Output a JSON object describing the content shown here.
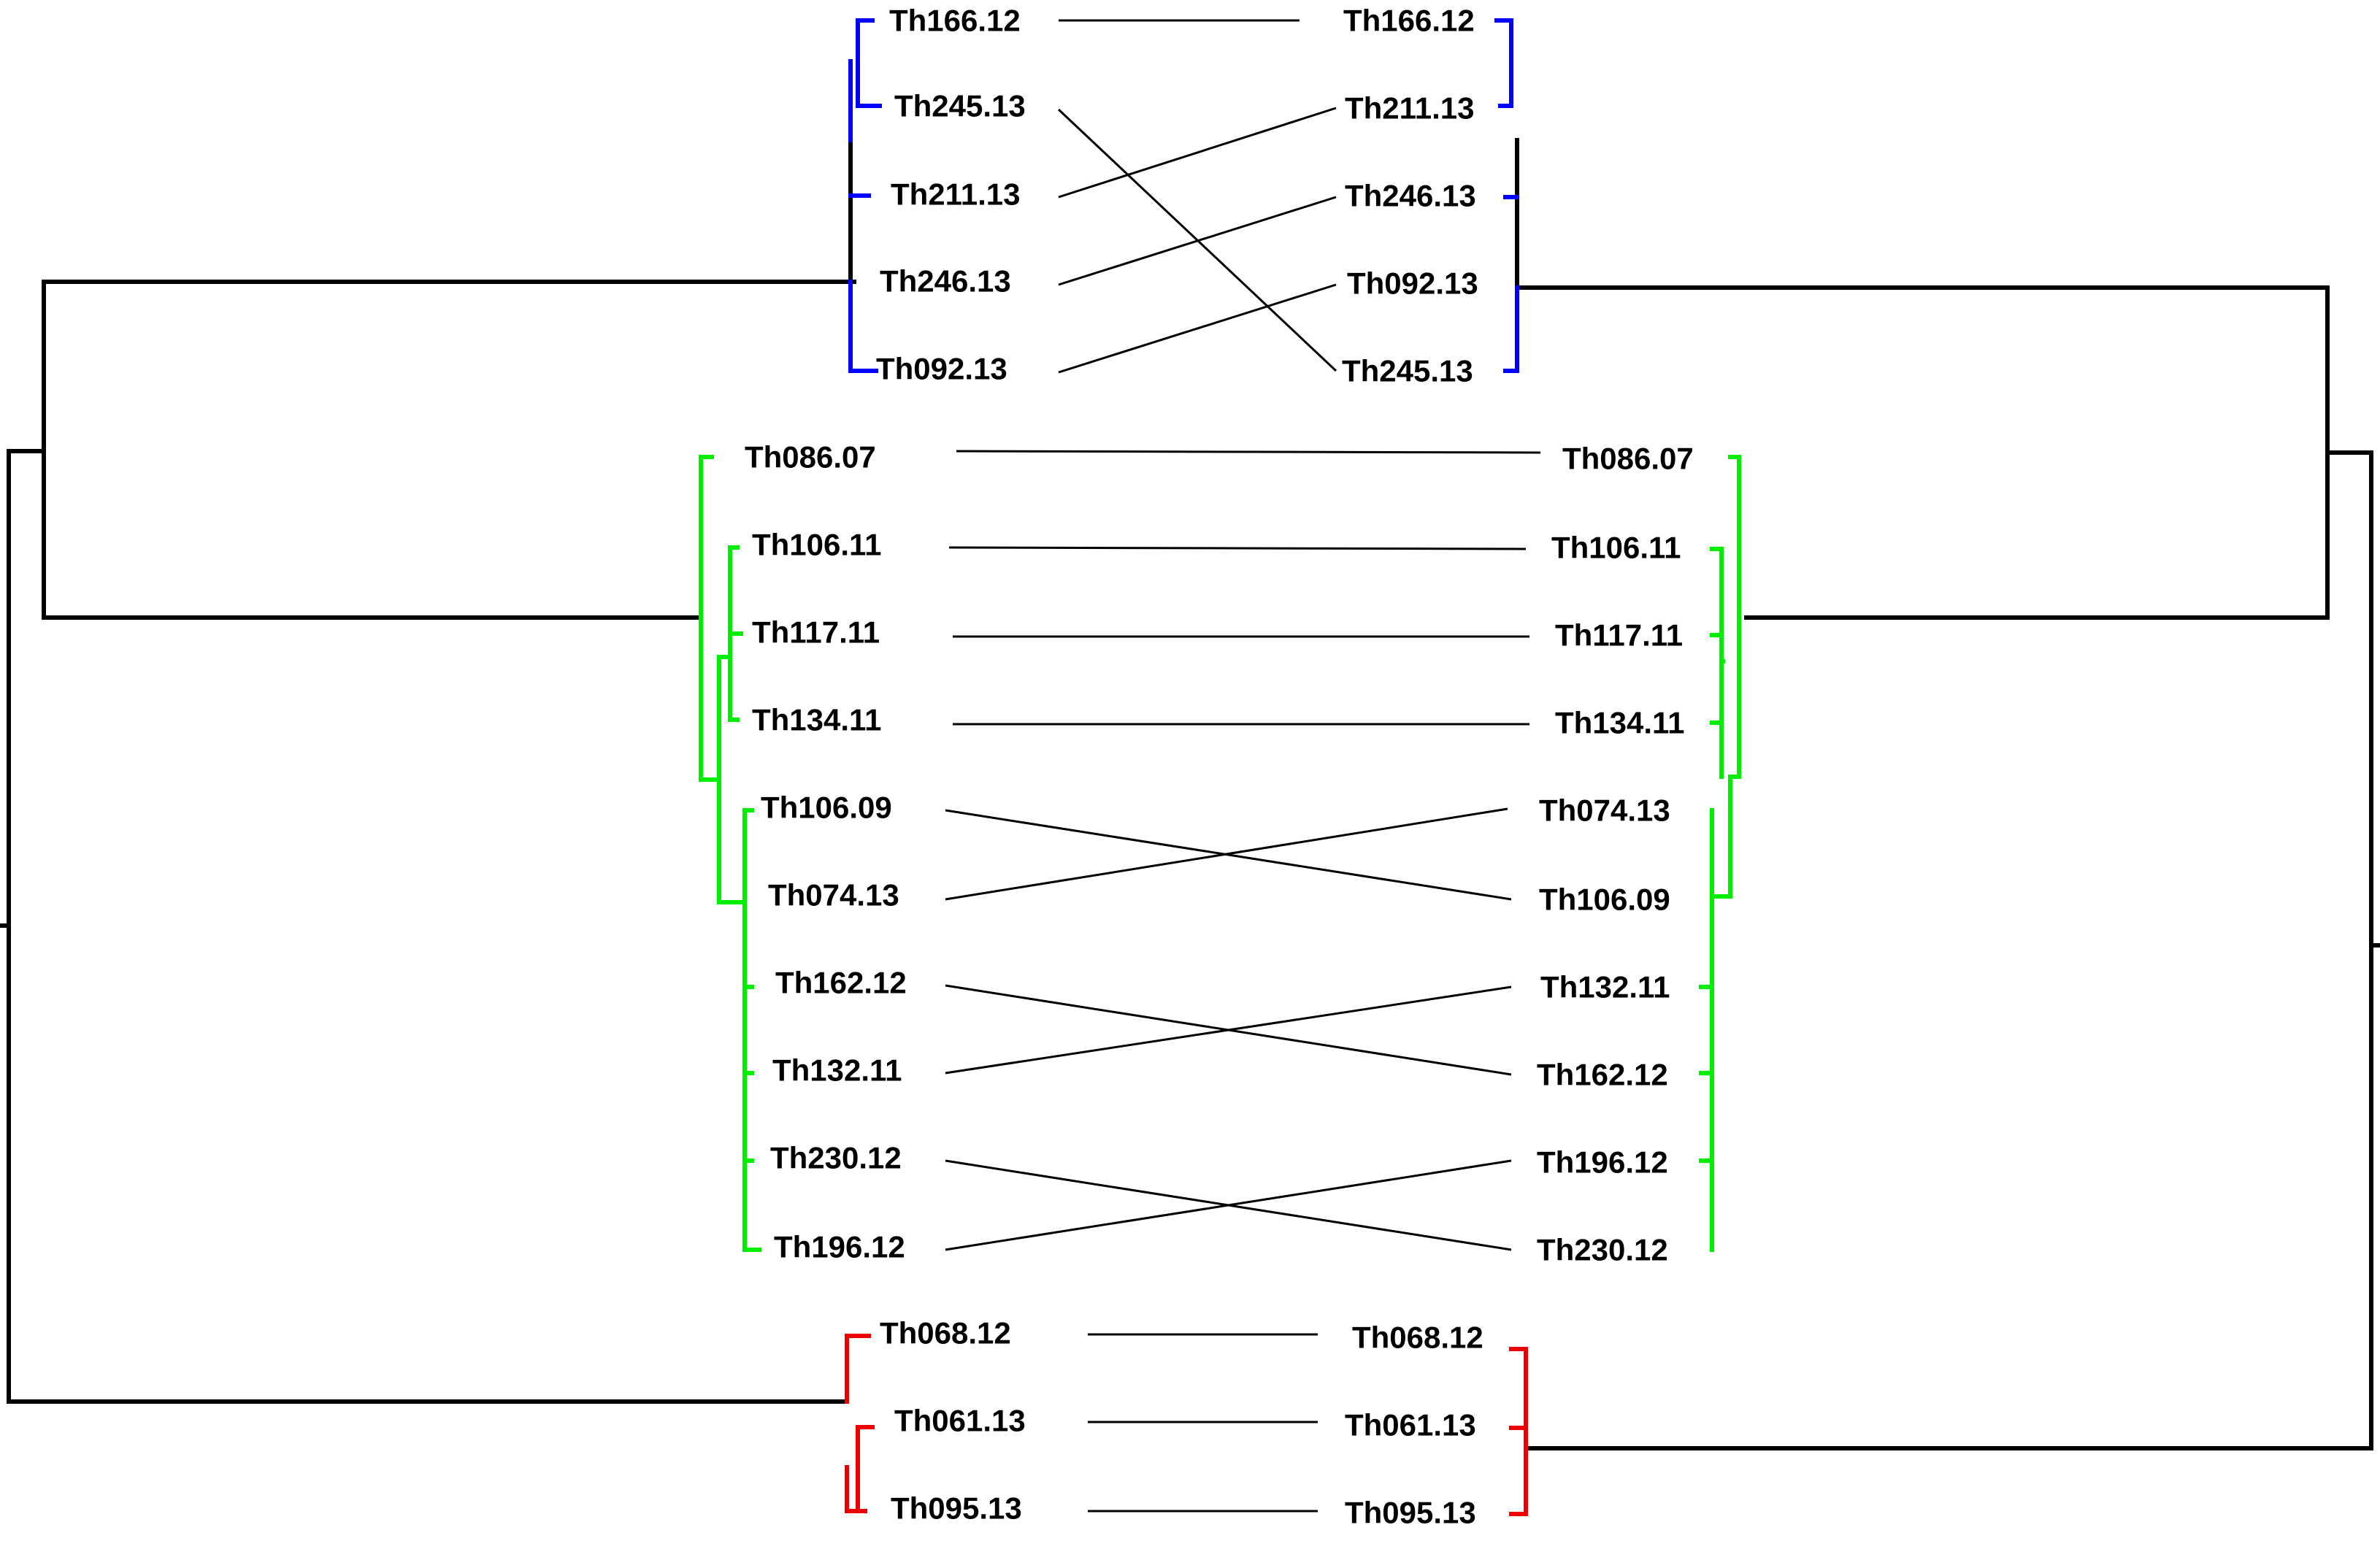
{
  "tanglegram": {
    "colors": {
      "backbone": "#000000",
      "blue_cluster": "#0000ff",
      "green_cluster": "#00ee00",
      "red_cluster": "#ee0000",
      "connector": "#000000"
    },
    "left_tree": {
      "leaves": [
        "Th166.12",
        "Th245.13",
        "Th211.13",
        "Th246.13",
        "Th092.13",
        "Th086.07",
        "Th106.11",
        "Th117.11",
        "Th134.11",
        "Th106.09",
        "Th074.13",
        "Th162.12",
        "Th132.11",
        "Th230.12",
        "Th196.12",
        "Th068.12",
        "Th061.13",
        "Th095.13"
      ]
    },
    "right_tree": {
      "leaves": [
        "Th166.12",
        "Th211.13",
        "Th246.13",
        "Th092.13",
        "Th245.13",
        "Th086.07",
        "Th106.11",
        "Th117.11",
        "Th134.11",
        "Th074.13",
        "Th106.09",
        "Th132.11",
        "Th162.12",
        "Th196.12",
        "Th230.12",
        "Th068.12",
        "Th061.13",
        "Th095.13"
      ]
    }
  }
}
